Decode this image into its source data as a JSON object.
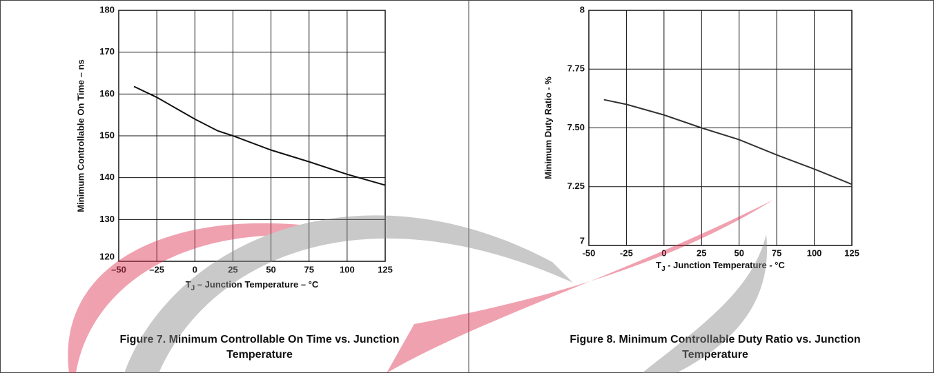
{
  "chart_data": [
    {
      "type": "line",
      "title": "Figure 7. Minimum Controllable On Time vs. Junction Temperature",
      "xlabel": [
        "T",
        "J",
        " – Junction Temperature – °C"
      ],
      "ylabel": "Minimum Controllable On Time – ns",
      "x": [
        -40,
        -25,
        0,
        15,
        25,
        50,
        75,
        100,
        125
      ],
      "series": [
        {
          "color": "#111111",
          "values": [
            161.8,
            159.2,
            154,
            151.2,
            150,
            146.6,
            143.8,
            140.8,
            138.2
          ]
        }
      ],
      "xlim": [
        -50,
        125
      ],
      "xticks": [
        {
          "value": -50,
          "label": "–50"
        },
        {
          "value": -25,
          "label": "–25"
        },
        0,
        25,
        50,
        75,
        100,
        125
      ],
      "ylim": [
        120,
        180
      ],
      "yticks": [
        120,
        130,
        140,
        150,
        160,
        170,
        180
      ],
      "grid": true
    },
    {
      "type": "line",
      "title": "Figure 8. Minimum Controllable Duty Ratio vs. Junction Temperature",
      "xlabel": [
        "T",
        "J",
        " - Junction Temperature -  °C"
      ],
      "ylabel": "Minimum Duty Ratio - %",
      "x": [
        -40,
        -25,
        0,
        25,
        50,
        75,
        100,
        125
      ],
      "series": [
        {
          "color": "#333333",
          "values": [
            7.62,
            7.6,
            7.555,
            7.5,
            7.45,
            7.385,
            7.325,
            7.26
          ]
        }
      ],
      "xlim": [
        -50,
        125
      ],
      "xticks": [
        -50,
        -25,
        0,
        25,
        50,
        75,
        100,
        125
      ],
      "ylim": [
        7,
        8
      ],
      "yticks": [
        7,
        7.25,
        {
          "value": 7.5,
          "label": "7.50"
        },
        7.75,
        8
      ],
      "grid": true
    }
  ]
}
